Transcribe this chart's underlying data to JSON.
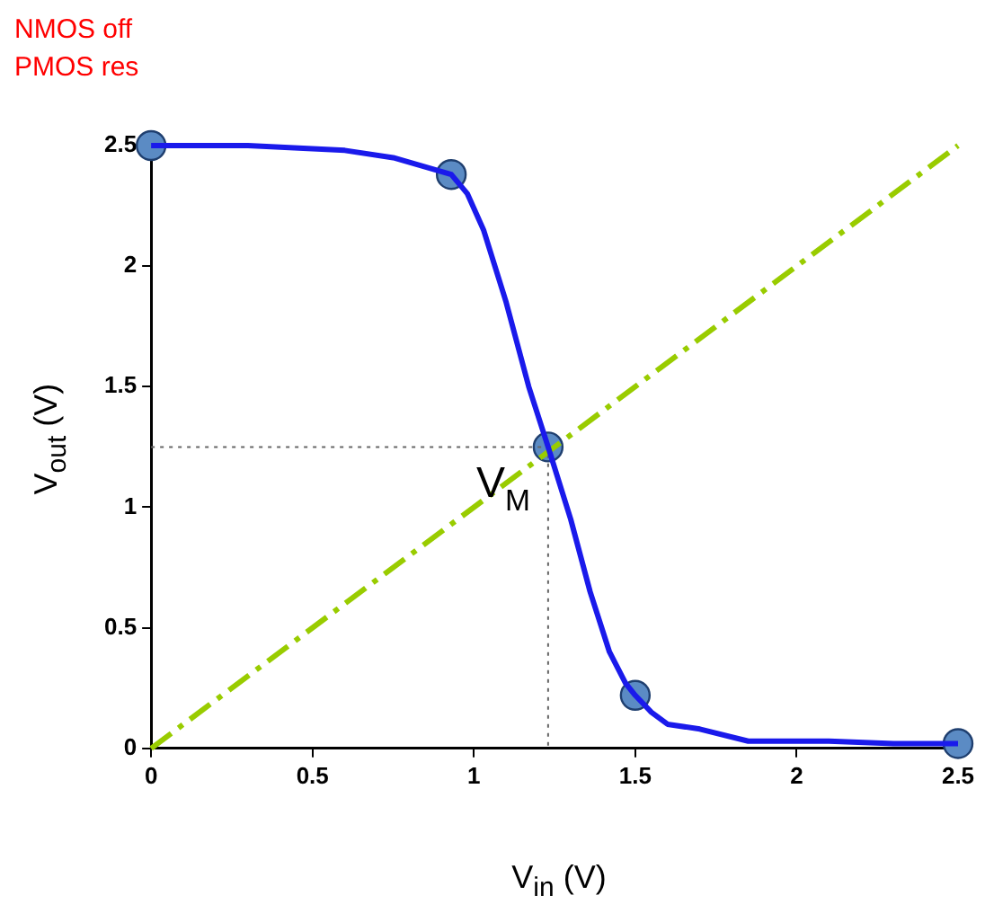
{
  "chart_data": {
    "type": "line",
    "xlabel": "V$_{in}$ (V)",
    "ylabel": "V$_{out}$ (V)",
    "annotations": [
      "NMOS off",
      "PMOS res",
      {
        "text": "V$_{M}$",
        "x": 1.23,
        "y": 1.25
      }
    ],
    "xlim": [
      0,
      2.5
    ],
    "ylim": [
      0,
      2.5
    ],
    "xticks": [
      0,
      0.5,
      1,
      1.5,
      2,
      2.5
    ],
    "yticks": [
      0,
      0.5,
      1,
      1.5,
      2,
      2.5
    ],
    "grid": false,
    "legend": false,
    "series": [
      {
        "type": "line",
        "color": "#1a1aeb",
        "marker": "none",
        "line_style": "solid",
        "x": [
          0,
          0.3,
          0.6,
          0.75,
          0.93,
          0.98,
          1.03,
          1.1,
          1.17,
          1.23,
          1.3,
          1.36,
          1.42,
          1.47,
          1.5,
          1.55,
          1.6,
          1.7,
          1.85,
          2.1,
          2.3,
          2.5
        ],
        "values": [
          2.5,
          2.5,
          2.48,
          2.45,
          2.38,
          2.3,
          2.15,
          1.85,
          1.5,
          1.25,
          0.95,
          0.65,
          0.4,
          0.27,
          0.22,
          0.15,
          0.1,
          0.08,
          0.03,
          0.03,
          0.02,
          0.02
        ]
      },
      {
        "type": "line",
        "color": "#99cc00",
        "marker": "none",
        "line_style": "dashdot",
        "x": [
          0,
          2.5
        ],
        "values": [
          0,
          2.5
        ]
      },
      {
        "type": "line",
        "color": "#666666",
        "marker": "none",
        "line_style": "dotted",
        "x": [
          0,
          1.23,
          1.23
        ],
        "values": [
          1.25,
          1.25,
          0
        ]
      },
      {
        "type": "scatter",
        "color": "#5b8bc4",
        "marker": "circle",
        "x": [
          0,
          0.93,
          1.23,
          1.5,
          2.5
        ],
        "values": [
          2.5,
          2.38,
          1.25,
          0.22,
          0.02
        ]
      }
    ]
  }
}
